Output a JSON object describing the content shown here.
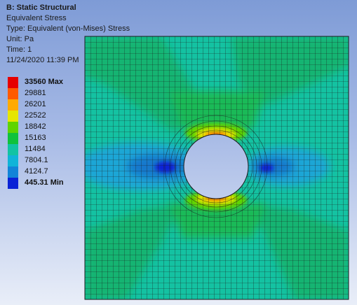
{
  "header": {
    "title": "B: Static Structural",
    "result": "Equivalent Stress",
    "type": "Type: Equivalent (von-Mises) Stress",
    "unit": "Unit: Pa",
    "time": "Time: 1",
    "timestamp": "11/24/2020 11:39 PM"
  },
  "legend": {
    "items": [
      {
        "label": "33560 Max",
        "color": "#e60000",
        "bold": true
      },
      {
        "label": "29881",
        "color": "#ff5a00"
      },
      {
        "label": "26201",
        "color": "#ffaa00"
      },
      {
        "label": "22522",
        "color": "#e6e600"
      },
      {
        "label": "18842",
        "color": "#5fd400"
      },
      {
        "label": "15163",
        "color": "#10c23c"
      },
      {
        "label": "11484",
        "color": "#12c3a3"
      },
      {
        "label": "7804.1",
        "color": "#10b4d8"
      },
      {
        "label": "4124.7",
        "color": "#1284d8"
      },
      {
        "label": "445.31 Min",
        "color": "#0a22d6",
        "bold": true
      }
    ]
  },
  "colors": {
    "background_top": "#7e9bd6",
    "mesh_line": "#1a1a1a"
  }
}
